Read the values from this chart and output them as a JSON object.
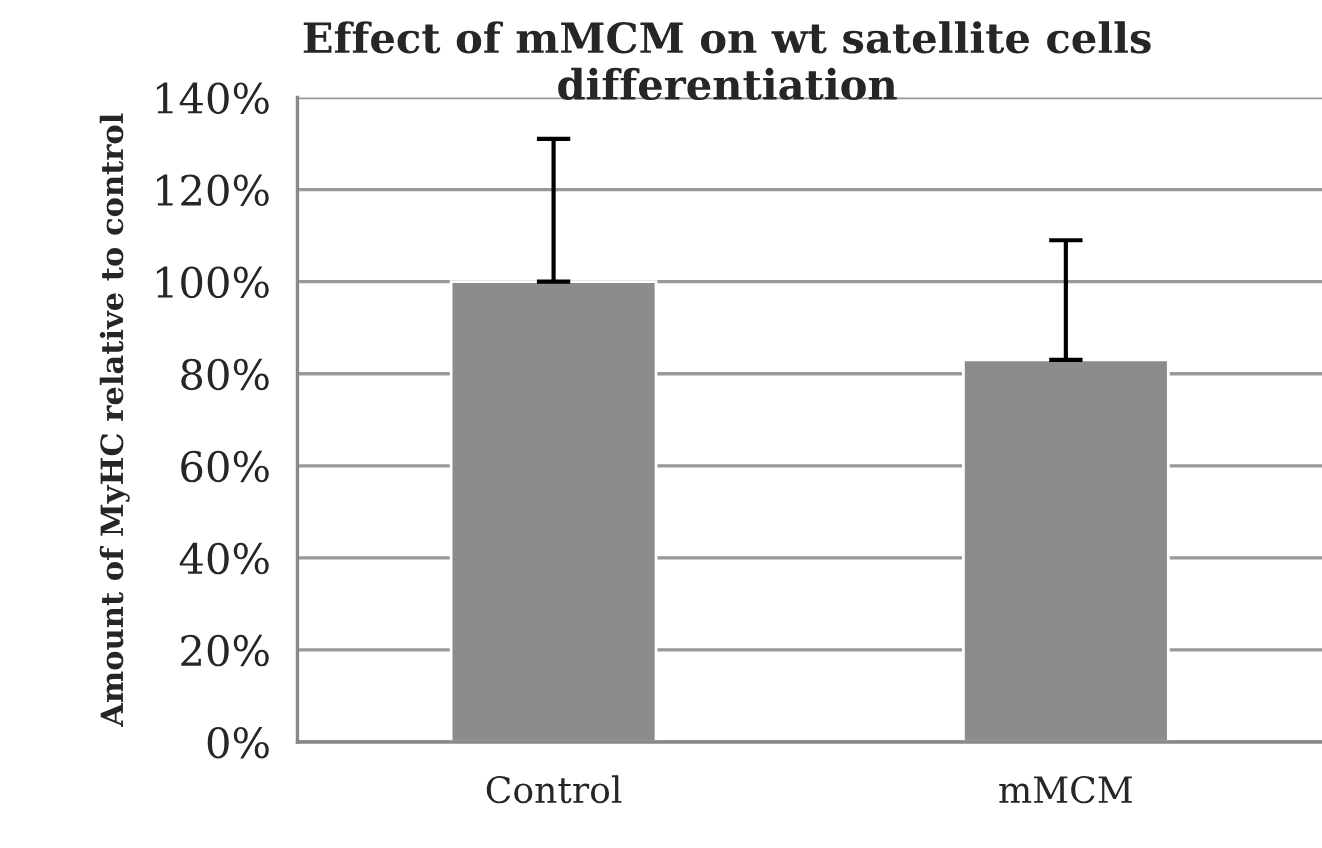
{
  "chart_data": {
    "type": "bar",
    "title": "Effect of mMCM on wt satellite cells differentiation",
    "ylabel": "Amount of MyHC relative to control",
    "categories": [
      "Control",
      "mMCM"
    ],
    "values": [
      100,
      83
    ],
    "color": "#8c8c8c",
    "errors": [
      [
        100,
        131
      ],
      [
        83,
        109
      ]
    ],
    "ylim": [
      0,
      140
    ],
    "yticks": [
      {
        "value": 0,
        "label": "0%"
      },
      {
        "value": 20,
        "label": "20%"
      },
      {
        "value": 40,
        "label": "40%"
      },
      {
        "value": 60,
        "label": "60%"
      },
      {
        "value": 80,
        "label": "80%"
      },
      {
        "value": 100,
        "label": "100%"
      },
      {
        "value": 120,
        "label": "120%"
      },
      {
        "value": 140,
        "label": "140%"
      }
    ],
    "grid": "y",
    "legend": false
  }
}
